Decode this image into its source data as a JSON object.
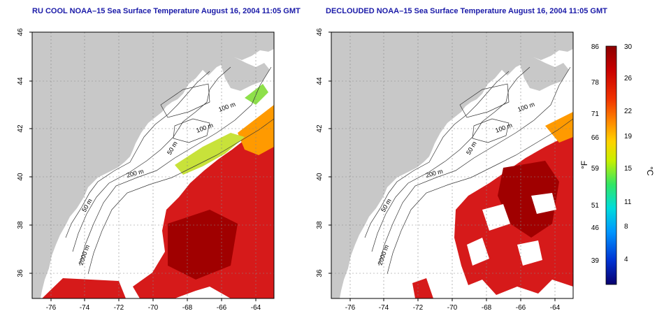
{
  "panels": [
    {
      "id": "left",
      "title": "RU COOL NOAA–15 Sea Surface Temperature August 16, 2004 11:05 GMT",
      "y_ticks": [
        "46",
        "44",
        "42",
        "40",
        "38",
        "36"
      ],
      "x_ticks": [
        "-76",
        "-74",
        "-72",
        "-70",
        "-68",
        "-66",
        "-64"
      ],
      "contour_labels": [
        "100 m",
        "100 m",
        "50 m",
        "200 m",
        "50 m",
        "2000 m"
      ]
    },
    {
      "id": "right",
      "title": "DECLOUDED NOAA–15 Sea Surface Temperature August 16, 2004 11:05 GMT",
      "y_ticks": [
        "46",
        "44",
        "42",
        "40",
        "38",
        "36"
      ],
      "x_ticks": [
        "-76",
        "-74",
        "-72",
        "-70",
        "-68",
        "-66",
        "-64"
      ],
      "contour_labels": [
        "100 m",
        "100 m",
        "50 m",
        "200 m",
        "50 m",
        "2000 m"
      ]
    }
  ],
  "colorbar": {
    "fahrenheit_ticks": [
      "86",
      "78",
      "71",
      "66",
      "59",
      "51",
      "46",
      "39"
    ],
    "celsius_ticks": [
      "30",
      "26",
      "22",
      "19",
      "15",
      "11",
      "8",
      "4"
    ],
    "fahrenheit_label": "°F",
    "celsius_label": "°C",
    "colors": [
      "#08006e",
      "#0032d2",
      "#0096ff",
      "#00dcdc",
      "#32e664",
      "#c8f000",
      "#ffd200",
      "#ff8c00",
      "#f03200",
      "#c80000",
      "#8c0000"
    ]
  },
  "colors": {
    "land": "#c8c8c8",
    "title": "#1a1aa8",
    "warm": "#d61a1a"
  }
}
